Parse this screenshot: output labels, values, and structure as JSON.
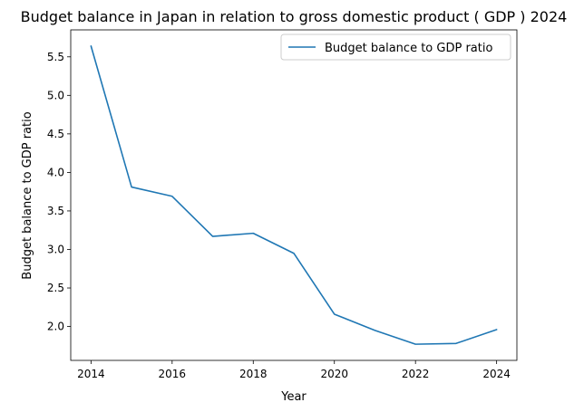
{
  "chart_data": {
    "type": "line",
    "title": "Budget balance in Japan in relation to gross domestic product ( GDP ) 2024",
    "xlabel": "Year",
    "ylabel": "Budget balance to GDP ratio",
    "x": [
      2014,
      2015,
      2016,
      2017,
      2018,
      2019,
      2020,
      2021,
      2022,
      2023,
      2024
    ],
    "series": [
      {
        "name": "Budget balance to GDP ratio",
        "values": [
          5.64,
          3.81,
          3.69,
          3.17,
          3.21,
          2.95,
          2.16,
          1.95,
          1.77,
          1.78,
          1.96
        ],
        "color": "#1f77b4"
      }
    ],
    "xticks": [
      "2014",
      "2016",
      "2018",
      "2020",
      "2022",
      "2024"
    ],
    "yticks": [
      "2.0",
      "2.5",
      "3.0",
      "3.5",
      "4.0",
      "4.5",
      "5.0",
      "5.5"
    ],
    "xlim": [
      2013.5,
      2024.5
    ],
    "ylim": [
      1.56,
      5.85
    ],
    "grid": false,
    "legend_position": "top-right"
  }
}
